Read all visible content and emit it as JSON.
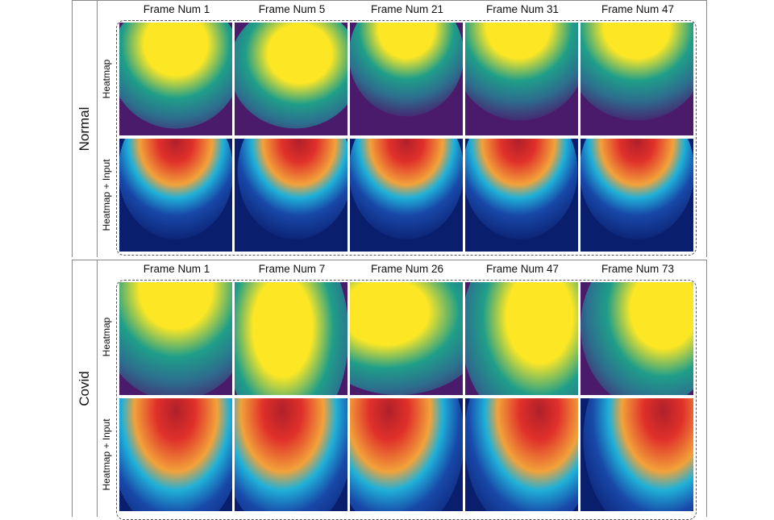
{
  "normal": {
    "group_label": "Normal",
    "frames": [
      "Frame Num 1",
      "Frame Num 5",
      "Frame Num 21",
      "Frame Num 31",
      "Frame Num 47"
    ],
    "row_labels": [
      "Heatmap",
      "Heatmap + Input"
    ]
  },
  "covid": {
    "group_label": "Covid",
    "frames": [
      "Frame Num 1",
      "Frame Num 7",
      "Frame Num 26",
      "Frame Num 47",
      "Frame Num 73"
    ],
    "row_labels": [
      "Heatmap",
      "Heatmap + Input"
    ]
  },
  "colors": {
    "heatmap_low": "#4a1a6b",
    "heatmap_mid": "#1f9e89",
    "heatmap_high": "#fde725",
    "overlay_low": "#0a1e6e",
    "overlay_mid": "#1fb0d8",
    "overlay_high": "#e0302a"
  }
}
